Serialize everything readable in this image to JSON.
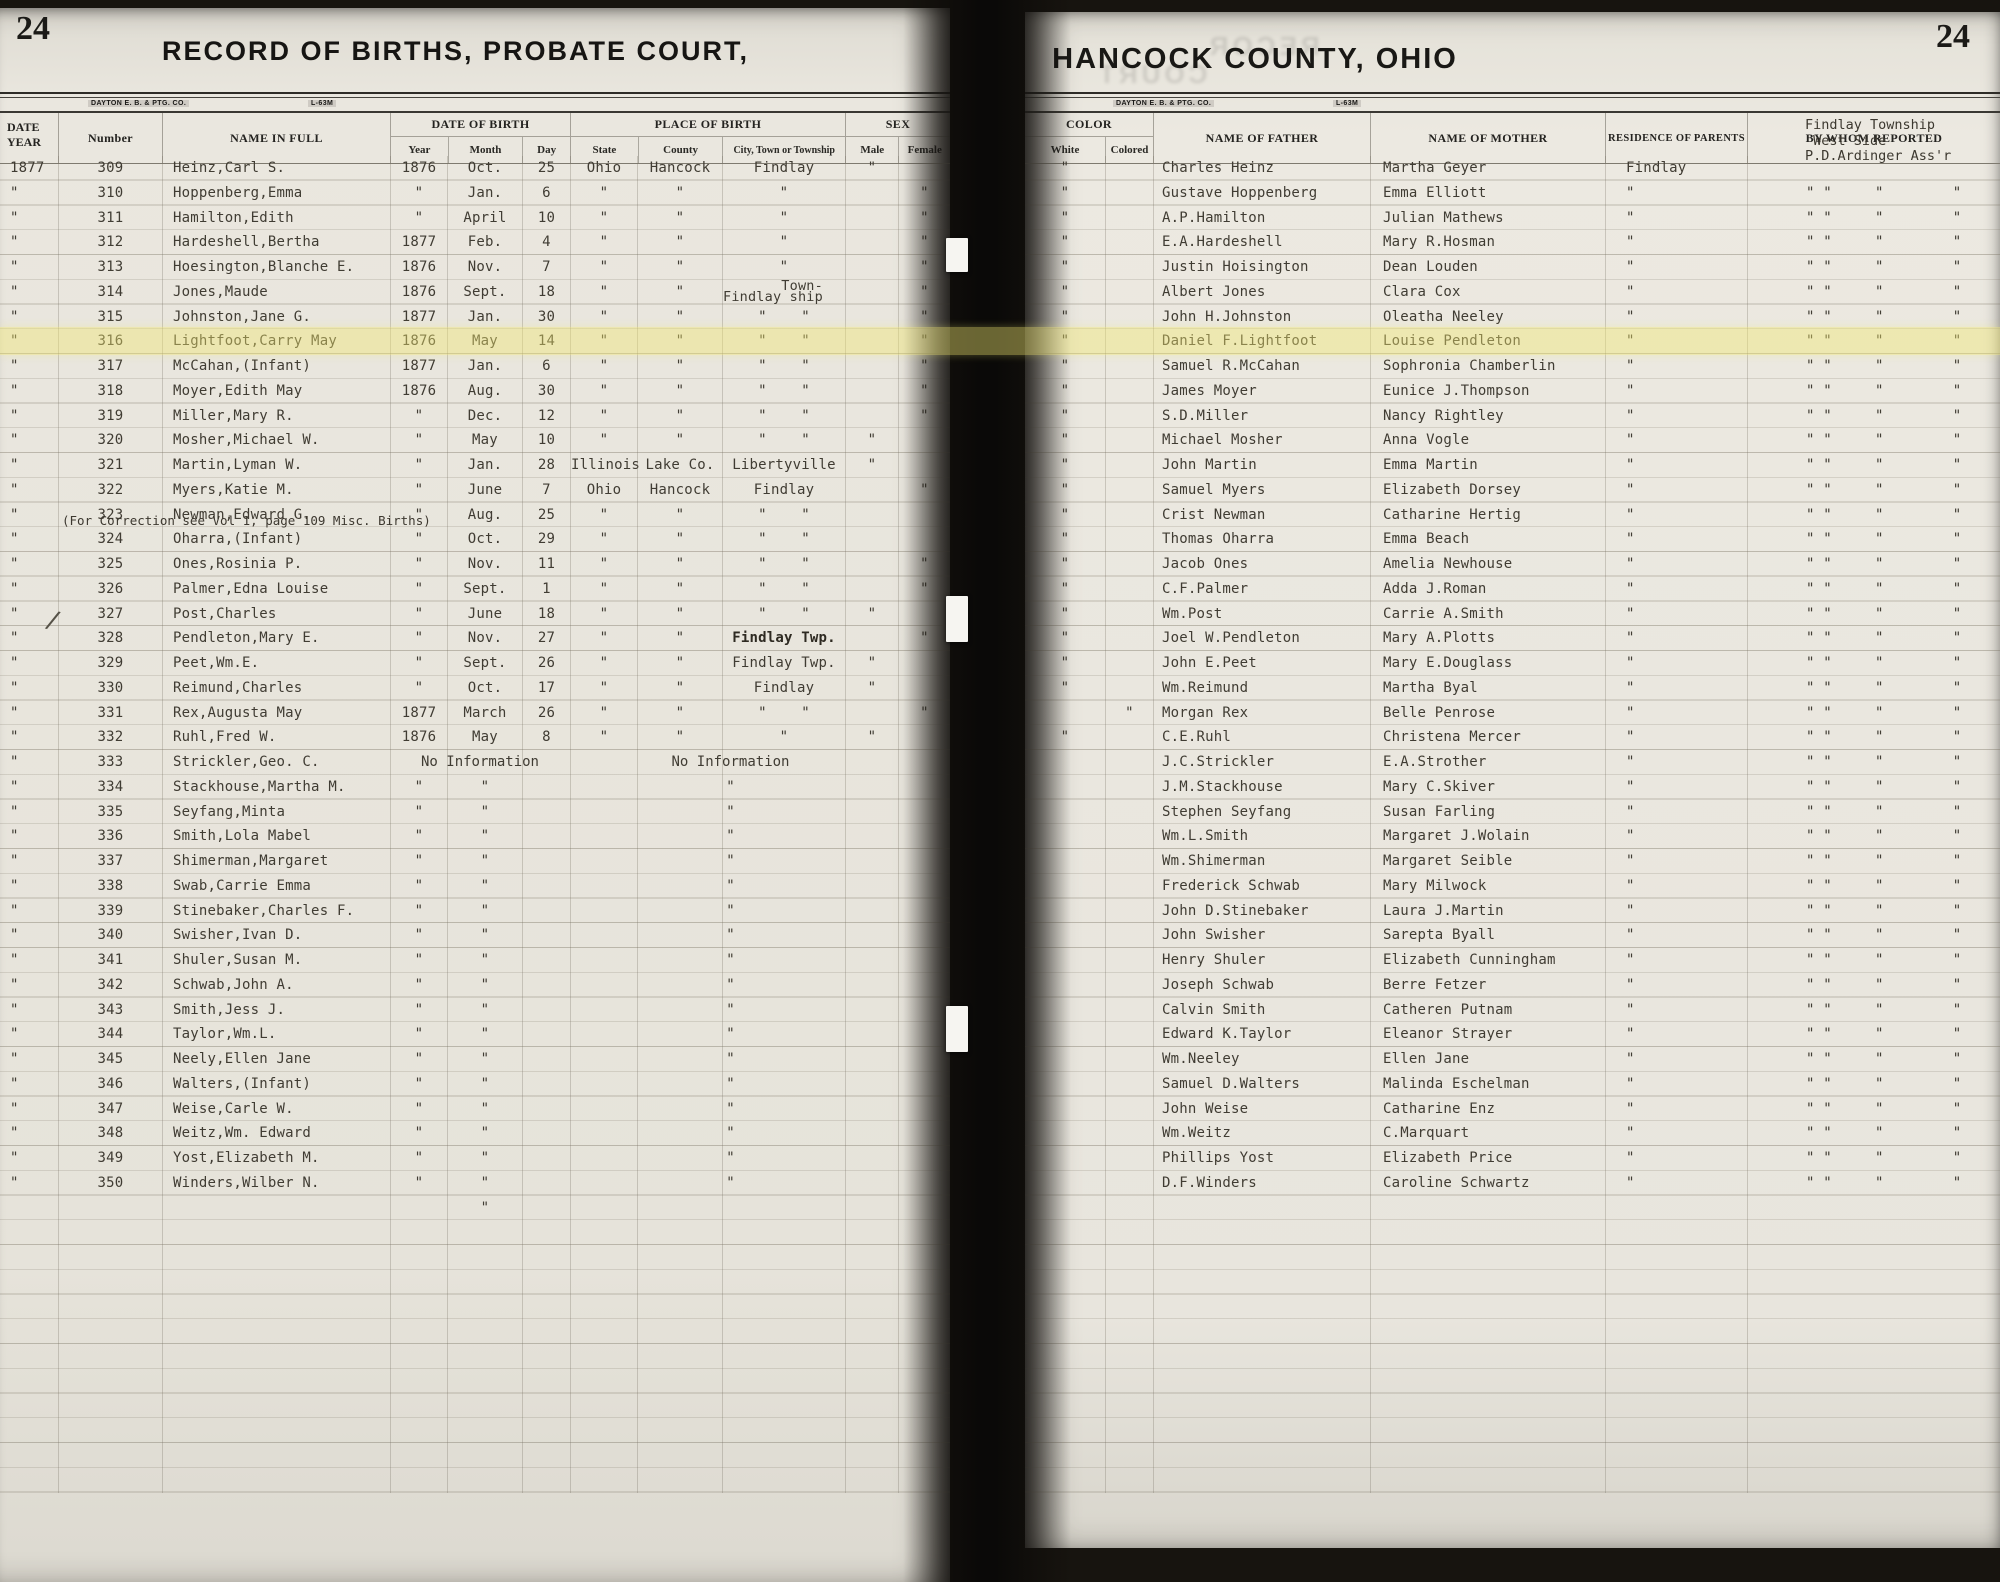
{
  "highlight_row_number": "316",
  "left": {
    "page_number": "24",
    "title": "RECORD OF BIRTHS, PROBATE COURT,",
    "stamp_left": "DAYTON E. B. & PTG. CO.",
    "stamp_right": "L-63M",
    "head": {
      "date": "DATE",
      "year": "YEAR",
      "number": "Number",
      "name": "NAME IN FULL",
      "dob": "DATE OF BIRTH",
      "y": "Year",
      "m": "Month",
      "d": "Day",
      "pob": "PLACE OF BIRTH",
      "state": "State",
      "county": "County",
      "city": "City, Town or Township",
      "sex": "SEX",
      "male": "Male",
      "female": "Female"
    },
    "correction_note": "(For Correction see Vol 1, page 109 Misc. Births)",
    "check_glyph": "∕",
    "rows": [
      {
        "y": "1877",
        "n": "309",
        "nm": "Heinz,Carl S.",
        "by": "1876",
        "bm": "Oct.",
        "bd": "25",
        "st": "Ohio",
        "co": "Hancock",
        "ci": "Findlay",
        "ma": "\"",
        "fe": ""
      },
      {
        "y": "\"",
        "n": "310",
        "nm": "Hoppenberg,Emma",
        "by": "\"",
        "bm": "Jan.",
        "bd": "6",
        "st": "\"",
        "co": "\"",
        "ci": "\"",
        "ma": "",
        "fe": "\""
      },
      {
        "y": "\"",
        "n": "311",
        "nm": "Hamilton,Edith",
        "by": "\"",
        "bm": "April",
        "bd": "10",
        "st": "\"",
        "co": "\"",
        "ci": "\"",
        "ma": "",
        "fe": "\""
      },
      {
        "y": "\"",
        "n": "312",
        "nm": "Hardeshell,Bertha",
        "by": "1877",
        "bm": "Feb.",
        "bd": "4",
        "st": "\"",
        "co": "\"",
        "ci": "\"",
        "ma": "",
        "fe": "\""
      },
      {
        "y": "\"",
        "n": "313",
        "nm": "Hoesington,Blanche E.",
        "by": "1876",
        "bm": "Nov.",
        "bd": "7",
        "st": "\"",
        "co": "\"",
        "ci": "\"",
        "ma": "",
        "fe": "\""
      },
      {
        "y": "\"",
        "n": "314",
        "nm": "Jones,Maude",
        "by": "1876",
        "bm": "Sept.",
        "bd": "18",
        "st": "\"",
        "co": "\"",
        "ci": "       Town-\nFindlay ship",
        "ma": "",
        "fe": "\""
      },
      {
        "y": "\"",
        "n": "315",
        "nm": "Johnston,Jane G.",
        "by": "1877",
        "bm": "Jan.",
        "bd": "30",
        "st": "\"",
        "co": "\"",
        "ci": "\"    \"",
        "ma": "",
        "fe": "\""
      },
      {
        "y": "\"",
        "n": "316",
        "nm": "Lightfoot,Carry May",
        "by": "1876",
        "bm": "May",
        "bd": "14",
        "st": "\"",
        "co": "\"",
        "ci": "\"    \"",
        "ma": "",
        "fe": "\""
      },
      {
        "y": "\"",
        "n": "317",
        "nm": "McCahan,(Infant)",
        "by": "1877",
        "bm": "Jan.",
        "bd": "6",
        "st": "\"",
        "co": "\"",
        "ci": "\"    \"",
        "ma": "",
        "fe": "\""
      },
      {
        "y": "\"",
        "n": "318",
        "nm": "Moyer,Edith May",
        "by": "1876",
        "bm": "Aug.",
        "bd": "30",
        "st": "\"",
        "co": "\"",
        "ci": "\"    \"",
        "ma": "",
        "fe": "\""
      },
      {
        "y": "\"",
        "n": "319",
        "nm": "Miller,Mary R.",
        "by": "\"",
        "bm": "Dec.",
        "bd": "12",
        "st": "\"",
        "co": "\"",
        "ci": "\"    \"",
        "ma": "",
        "fe": "\""
      },
      {
        "y": "\"",
        "n": "320",
        "nm": "Mosher,Michael W.",
        "by": "\"",
        "bm": "May",
        "bd": "10",
        "st": "\"",
        "co": "\"",
        "ci": "\"    \"",
        "ma": "\"",
        "fe": ""
      },
      {
        "y": "\"",
        "n": "321",
        "nm": "Martin,Lyman W.",
        "by": "\"",
        "bm": "Jan.",
        "bd": "28",
        "st": "Illinois",
        "co": "Lake Co.",
        "ci": "Libertyville",
        "ma": "\"",
        "fe": ""
      },
      {
        "y": "\"",
        "n": "322",
        "nm": "Myers,Katie M.",
        "by": "\"",
        "bm": "June",
        "bd": "7",
        "st": "Ohio",
        "co": "Hancock",
        "ci": "Findlay",
        "ma": "",
        "fe": "\""
      },
      {
        "y": "\"",
        "n": "323",
        "nm": "Newman,Edward G.",
        "by": "\"",
        "bm": "Aug.",
        "bd": "25",
        "st": "\"",
        "co": "\"",
        "ci": "\"    \"",
        "ma": "",
        "fe": ""
      },
      {
        "y": "\"",
        "n": "324",
        "nm": "Oharra,(Infant)",
        "by": "\"",
        "bm": "Oct.",
        "bd": "29",
        "st": "\"",
        "co": "\"",
        "ci": "\"    \"",
        "ma": "",
        "fe": ""
      },
      {
        "y": "\"",
        "n": "325",
        "nm": "Ones,Rosinia P.",
        "by": "\"",
        "bm": "Nov.",
        "bd": "11",
        "st": "\"",
        "co": "\"",
        "ci": "\"    \"",
        "ma": "",
        "fe": "\""
      },
      {
        "y": "\"",
        "n": "326",
        "nm": "Palmer,Edna Louise",
        "by": "\"",
        "bm": "Sept.",
        "bd": "1",
        "st": "\"",
        "co": "\"",
        "ci": "\"    \"",
        "ma": "",
        "fe": "\""
      },
      {
        "y": "\"",
        "n": "327",
        "nm": "Post,Charles",
        "by": "\"",
        "bm": "June",
        "bd": "18",
        "st": "\"",
        "co": "\"",
        "ci": "\"    \"",
        "ma": "\"",
        "fe": ""
      },
      {
        "y": "\"",
        "n": "328",
        "nm": "Pendleton,Mary E.",
        "by": "\"",
        "bm": "Nov.",
        "bd": "27",
        "st": "\"",
        "co": "\"",
        "ci": "Findlay Twp.",
        "cb": 1,
        "chk": 1,
        "ma": "",
        "fe": "\""
      },
      {
        "y": "\"",
        "n": "329",
        "nm": "Peet,Wm.E.",
        "by": "\"",
        "bm": "Sept.",
        "bd": "26",
        "st": "\"",
        "co": "\"",
        "ci": "Findlay Twp.",
        "ma": "\"",
        "fe": ""
      },
      {
        "y": "\"",
        "n": "330",
        "nm": "Reimund,Charles",
        "by": "\"",
        "bm": "Oct.",
        "bd": "17",
        "st": "\"",
        "co": "\"",
        "ci": "Findlay",
        "ma": "\"",
        "fe": ""
      },
      {
        "y": "\"",
        "n": "331",
        "nm": "Rex,Augusta May",
        "by": "1877",
        "bm": "March",
        "bd": "26",
        "st": "\"",
        "co": "\"",
        "ci": "\"    \"",
        "ma": "",
        "fe": "\""
      },
      {
        "y": "\"",
        "n": "332",
        "nm": "Ruhl,Fred W.",
        "by": "1876",
        "bm": "May",
        "bd": "8",
        "st": "\"",
        "co": "\"",
        "ci": "\"",
        "ma": "\"",
        "fe": ""
      },
      {
        "y": "\"",
        "n": "333",
        "nm": "Strickler,Geo. C.",
        "by": "",
        "bm": "",
        "bd": "",
        "st": "",
        "co": "",
        "ci": "",
        "ma": "",
        "fe": "",
        "dn": "No Information",
        "pn": "No Information"
      },
      {
        "y": "\"",
        "n": "334",
        "nm": "Stackhouse,Martha M.",
        "by": "\"",
        "bm": "\"",
        "bd": "",
        "st": "",
        "co": "",
        "ci": "",
        "ma": "",
        "fe": "",
        "pn": "\""
      },
      {
        "y": "\"",
        "n": "335",
        "nm": "Seyfang,Minta",
        "by": "\"",
        "bm": "\"",
        "bd": "",
        "st": "",
        "co": "",
        "ci": "",
        "ma": "",
        "fe": "",
        "pn": "\""
      },
      {
        "y": "\"",
        "n": "336",
        "nm": "Smith,Lola Mabel",
        "by": "\"",
        "bm": "\"",
        "bd": "",
        "st": "",
        "co": "",
        "ci": "",
        "ma": "",
        "fe": "",
        "pn": "\""
      },
      {
        "y": "\"",
        "n": "337",
        "nm": "Shimerman,Margaret",
        "by": "\"",
        "bm": "\"",
        "bd": "",
        "st": "",
        "co": "",
        "ci": "",
        "ma": "",
        "fe": "",
        "pn": "\""
      },
      {
        "y": "\"",
        "n": "338",
        "nm": "Swab,Carrie Emma",
        "by": "\"",
        "bm": "\"",
        "bd": "",
        "st": "",
        "co": "",
        "ci": "",
        "ma": "",
        "fe": "",
        "pn": "\""
      },
      {
        "y": "\"",
        "n": "339",
        "nm": "Stinebaker,Charles F.",
        "by": "\"",
        "bm": "\"",
        "bd": "",
        "st": "",
        "co": "",
        "ci": "",
        "ma": "",
        "fe": "",
        "pn": "\""
      },
      {
        "y": "\"",
        "n": "340",
        "nm": "Swisher,Ivan D.",
        "by": "\"",
        "bm": "\"",
        "bd": "",
        "st": "",
        "co": "",
        "ci": "",
        "ma": "",
        "fe": "",
        "pn": "\""
      },
      {
        "y": "\"",
        "n": "341",
        "nm": "Shuler,Susan M.",
        "by": "\"",
        "bm": "\"",
        "bd": "",
        "st": "",
        "co": "",
        "ci": "",
        "ma": "",
        "fe": "",
        "pn": "\""
      },
      {
        "y": "\"",
        "n": "342",
        "nm": "Schwab,John A.",
        "by": "\"",
        "bm": "\"",
        "bd": "",
        "st": "",
        "co": "",
        "ci": "",
        "ma": "",
        "fe": "",
        "pn": "\""
      },
      {
        "y": "\"",
        "n": "343",
        "nm": "Smith,Jess J.",
        "by": "\"",
        "bm": "\"",
        "bd": "",
        "st": "",
        "co": "",
        "ci": "",
        "ma": "",
        "fe": "",
        "pn": "\""
      },
      {
        "y": "\"",
        "n": "344",
        "nm": "Taylor,Wm.L.",
        "by": "\"",
        "bm": "\"",
        "bd": "",
        "st": "",
        "co": "",
        "ci": "",
        "ma": "",
        "fe": "",
        "pn": "\""
      },
      {
        "y": "\"",
        "n": "345",
        "nm": "Neely,Ellen Jane",
        "by": "\"",
        "bm": "\"",
        "bd": "",
        "st": "",
        "co": "",
        "ci": "",
        "ma": "",
        "fe": "",
        "pn": "\""
      },
      {
        "y": "\"",
        "n": "346",
        "nm": "Walters,(Infant)",
        "by": "\"",
        "bm": "\"",
        "bd": "",
        "st": "",
        "co": "",
        "ci": "",
        "ma": "",
        "fe": "",
        "pn": "\""
      },
      {
        "y": "\"",
        "n": "347",
        "nm": "Weise,Carle W.",
        "by": "\"",
        "bm": "\"",
        "bd": "",
        "st": "",
        "co": "",
        "ci": "",
        "ma": "",
        "fe": "",
        "pn": "\""
      },
      {
        "y": "\"",
        "n": "348",
        "nm": "Weitz,Wm. Edward",
        "by": "\"",
        "bm": "\"",
        "bd": "",
        "st": "",
        "co": "",
        "ci": "",
        "ma": "",
        "fe": "",
        "pn": "\""
      },
      {
        "y": "\"",
        "n": "349",
        "nm": "Yost,Elizabeth M.",
        "by": "\"",
        "bm": "\"",
        "bd": "",
        "st": "",
        "co": "",
        "ci": "",
        "ma": "",
        "fe": "",
        "pn": "\""
      },
      {
        "y": "\"",
        "n": "350",
        "nm": "Winders,Wilber N.",
        "by": "\"",
        "bm": "\"",
        "bd": "",
        "st": "",
        "co": "",
        "ci": "",
        "ma": "",
        "fe": "",
        "pn": "\""
      },
      {
        "y": "",
        "n": "",
        "nm": "",
        "by": "",
        "bm": "\"",
        "bd": "",
        "st": "",
        "co": "",
        "ci": "",
        "ma": "",
        "fe": ""
      }
    ]
  },
  "right": {
    "page_number": "24",
    "title": "HANCOCK COUNTY, OHIO",
    "stamp_left": "DAYTON E. B. & PTG. CO.",
    "stamp_right": "L-63M",
    "ghost_text": "RECOR\n          COURT",
    "head": {
      "color": "COLOR",
      "white": "White",
      "colored": "Colored",
      "father": "NAME OF FATHER",
      "mother": "NAME OF MOTHER",
      "residence": "RESIDENCE OF PARENTS",
      "reported": "BY WHOM REPORTED"
    },
    "reported_block": "Findlay Township\n West Side\nP.D.Ardinger Ass'r",
    "rows": [
      {
        "w": "\"",
        "c": "",
        "fa": "Charles Heinz",
        "mo": "Martha Geyer",
        "re": "Findlay",
        "rp": ""
      },
      {
        "w": "\"",
        "c": "",
        "fa": "Gustave Hoppenberg",
        "mo": "Emma Elliott",
        "re": "\"",
        "rp": "\" \"     \"        \""
      },
      {
        "w": "\"",
        "c": "",
        "fa": "A.P.Hamilton",
        "mo": "Julian Mathews",
        "re": "\"",
        "rp": "\" \"     \"        \""
      },
      {
        "w": "\"",
        "c": "",
        "fa": "E.A.Hardeshell",
        "mo": "Mary R.Hosman",
        "re": "\"",
        "rp": "\" \"     \"        \""
      },
      {
        "w": "\"",
        "c": "",
        "fa": "Justin Hoisington",
        "mo": "Dean Louden",
        "re": "\"",
        "rp": "\" \"     \"        \""
      },
      {
        "w": "\"",
        "c": "",
        "fa": "Albert Jones",
        "mo": "Clara Cox",
        "re": "\"",
        "rp": "\" \"     \"        \""
      },
      {
        "w": "\"",
        "c": "",
        "fa": "John H.Johnston",
        "mo": "Oleatha Neeley",
        "re": "\"",
        "rp": "\" \"     \"        \""
      },
      {
        "w": "\"",
        "c": "",
        "fa": "Daniel F.Lightfoot",
        "mo": "Louise Pendleton",
        "re": "\"",
        "rp": "\" \"     \"        \""
      },
      {
        "w": "\"",
        "c": "",
        "fa": "Samuel R.McCahan",
        "mo": "Sophronia Chamberlin",
        "re": "\"",
        "rp": "\" \"     \"        \""
      },
      {
        "w": "\"",
        "c": "",
        "fa": "James Moyer",
        "mo": "Eunice J.Thompson",
        "re": "\"",
        "rp": "\" \"     \"        \""
      },
      {
        "w": "\"",
        "c": "",
        "fa": "S.D.Miller",
        "mo": "Nancy Rightley",
        "re": "\"",
        "rp": "\" \"     \"        \""
      },
      {
        "w": "\"",
        "c": "",
        "fa": "Michael Mosher",
        "mo": "Anna Vogle",
        "re": "\"",
        "rp": "\" \"     \"        \""
      },
      {
        "w": "\"",
        "c": "",
        "fa": "John Martin",
        "mo": "Emma Martin",
        "re": "\"",
        "rp": "\" \"     \"        \""
      },
      {
        "w": "\"",
        "c": "",
        "fa": "Samuel Myers",
        "mo": "Elizabeth Dorsey",
        "re": "\"",
        "rp": "\" \"     \"        \""
      },
      {
        "w": "\"",
        "c": "",
        "fa": "Crist Newman",
        "mo": "Catharine Hertig",
        "re": "\"",
        "rp": "\" \"     \"        \""
      },
      {
        "w": "\"",
        "c": "",
        "fa": "Thomas Oharra",
        "mo": "Emma Beach",
        "re": "\"",
        "rp": "\" \"     \"        \""
      },
      {
        "w": "\"",
        "c": "",
        "fa": "Jacob Ones",
        "mo": "Amelia Newhouse",
        "re": "\"",
        "rp": "\" \"     \"        \""
      },
      {
        "w": "\"",
        "c": "",
        "fa": "C.F.Palmer",
        "mo": "Adda J.Roman",
        "re": "\"",
        "rp": "\" \"     \"        \""
      },
      {
        "w": "\"",
        "c": "",
        "fa": "Wm.Post",
        "mo": "Carrie A.Smith",
        "re": "\"",
        "rp": "\" \"     \"        \""
      },
      {
        "w": "\"",
        "c": "",
        "fa": "Joel W.Pendleton",
        "mo": "Mary A.Plotts",
        "re": "\"",
        "rp": "\" \"     \"        \""
      },
      {
        "w": "\"",
        "c": "",
        "fa": "John E.Peet",
        "mo": "Mary E.Douglass",
        "re": "\"",
        "rp": "\" \"     \"        \""
      },
      {
        "w": "\"",
        "c": "",
        "fa": "Wm.Reimund",
        "mo": "Martha Byal",
        "re": "\"",
        "rp": "\" \"     \"        \""
      },
      {
        "w": "",
        "c": "\"",
        "fa": "Morgan Rex",
        "mo": "Belle Penrose",
        "re": "\"",
        "rp": "\" \"     \"        \""
      },
      {
        "w": "\"",
        "c": "",
        "fa": "C.E.Ruhl",
        "mo": "Christena Mercer",
        "re": "\"",
        "rp": "\" \"     \"        \""
      },
      {
        "w": "",
        "c": "",
        "fa": "J.C.Strickler",
        "mo": "E.A.Strother",
        "re": "\"",
        "rp": "\" \"     \"        \""
      },
      {
        "w": "",
        "c": "",
        "fa": "J.M.Stackhouse",
        "mo": "Mary C.Skiver",
        "re": "\"",
        "rp": "\" \"     \"        \""
      },
      {
        "w": "",
        "c": "",
        "fa": "Stephen Seyfang",
        "mo": "Susan Farling",
        "re": "\"",
        "rp": "\" \"     \"        \""
      },
      {
        "w": "",
        "c": "",
        "fa": "Wm.L.Smith",
        "mo": "Margaret J.Wolain",
        "re": "\"",
        "rp": "\" \"     \"        \""
      },
      {
        "w": "",
        "c": "",
        "fa": "Wm.Shimerman",
        "mo": "Margaret Seible",
        "re": "\"",
        "rp": "\" \"     \"        \""
      },
      {
        "w": "",
        "c": "",
        "fa": "Frederick Schwab",
        "mo": "Mary Milwock",
        "re": "\"",
        "rp": "\" \"     \"        \""
      },
      {
        "w": "",
        "c": "",
        "fa": "John D.Stinebaker",
        "mo": "Laura J.Martin",
        "re": "\"",
        "rp": "\" \"     \"        \""
      },
      {
        "w": "",
        "c": "",
        "fa": "John Swisher",
        "mo": "Sarepta Byall",
        "re": "\"",
        "rp": "\" \"     \"        \""
      },
      {
        "w": "",
        "c": "",
        "fa": "Henry Shuler",
        "mo": "Elizabeth Cunningham",
        "re": "\"",
        "rp": "\" \"     \"        \""
      },
      {
        "w": "",
        "c": "",
        "fa": "Joseph Schwab",
        "mo": "Berre Fetzer",
        "re": "\"",
        "rp": "\" \"     \"        \""
      },
      {
        "w": "",
        "c": "",
        "fa": "Calvin Smith",
        "mo": "Catheren Putnam",
        "re": "\"",
        "rp": "\" \"     \"        \""
      },
      {
        "w": "",
        "c": "",
        "fa": "Edward K.Taylor",
        "mo": "Eleanor Strayer",
        "re": "\"",
        "rp": "\" \"     \"        \""
      },
      {
        "w": "",
        "c": "",
        "fa": "Wm.Neeley",
        "mo": "Ellen Jane",
        "re": "\"",
        "rp": "\" \"     \"        \""
      },
      {
        "w": "",
        "c": "",
        "fa": "Samuel D.Walters",
        "mo": "Malinda Eschelman",
        "re": "\"",
        "rp": "\" \"     \"        \""
      },
      {
        "w": "",
        "c": "",
        "fa": "John Weise",
        "mo": "Catharine Enz",
        "re": "\"",
        "rp": "\" \"     \"        \""
      },
      {
        "w": "",
        "c": "",
        "fa": "Wm.Weitz",
        "mo": "C.Marquart",
        "re": "\"",
        "rp": "\" \"     \"        \""
      },
      {
        "w": "",
        "c": "",
        "fa": "Phillips Yost",
        "mo": "Elizabeth Price",
        "re": "\"",
        "rp": "\" \"     \"        \""
      },
      {
        "w": "",
        "c": "",
        "fa": "D.F.Winders",
        "mo": "Caroline Schwartz",
        "re": "\"",
        "rp": "\" \"     \"        \""
      }
    ]
  }
}
